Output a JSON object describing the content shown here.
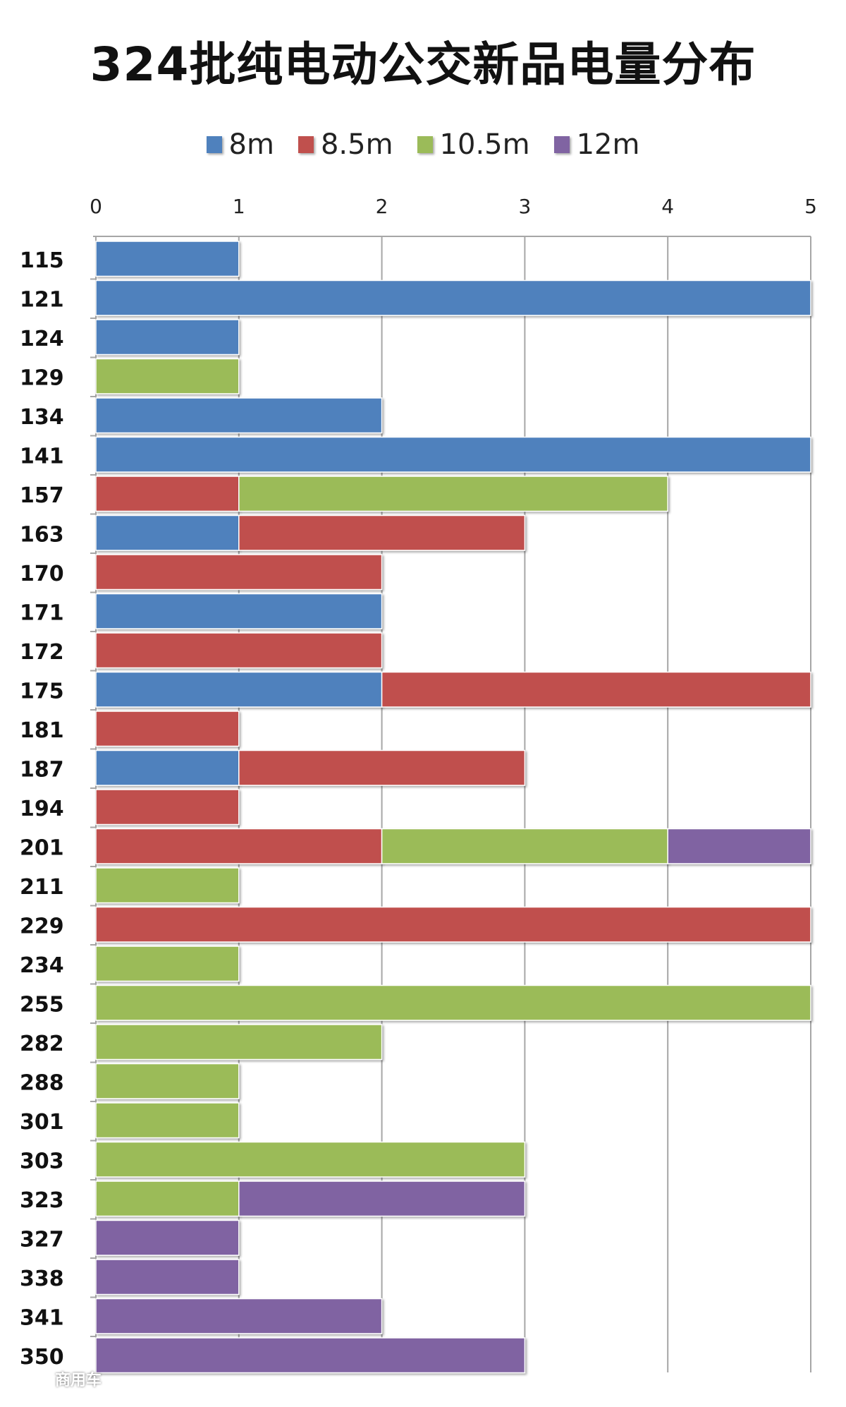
{
  "chart_data": {
    "type": "bar",
    "orientation": "horizontal",
    "stacked": true,
    "title": "324批纯电动公交新品电量分布",
    "legend_position": "top",
    "grid": true,
    "xlim": [
      0,
      5
    ],
    "x_ticks": [
      "0",
      "1",
      "2",
      "3",
      "4",
      "5"
    ],
    "categories": [
      "115",
      "121",
      "124",
      "129",
      "134",
      "141",
      "157",
      "163",
      "170",
      "171",
      "172",
      "175",
      "181",
      "187",
      "194",
      "201",
      "211",
      "229",
      "234",
      "255",
      "282",
      "288",
      "301",
      "303",
      "323",
      "327",
      "338",
      "341",
      "350"
    ],
    "series": [
      {
        "name": "8m",
        "color": "#4F81BD",
        "values": [
          1,
          5,
          1,
          0,
          2,
          5,
          0,
          1,
          0,
          2,
          0,
          2,
          0,
          1,
          0,
          0,
          0,
          0,
          0,
          0,
          0,
          0,
          0,
          0,
          0,
          0,
          0,
          0,
          0
        ]
      },
      {
        "name": "8.5m",
        "color": "#C0504D",
        "values": [
          0,
          0,
          0,
          0,
          0,
          0,
          1,
          2,
          2,
          0,
          2,
          3,
          1,
          2,
          1,
          2,
          0,
          5,
          0,
          0,
          0,
          0,
          0,
          0,
          0,
          0,
          0,
          0,
          0
        ]
      },
      {
        "name": "10.5m",
        "color": "#9BBB59",
        "values": [
          0,
          0,
          0,
          1,
          0,
          0,
          3,
          0,
          0,
          0,
          0,
          0,
          0,
          0,
          0,
          2,
          1,
          0,
          1,
          5,
          2,
          1,
          1,
          3,
          1,
          0,
          0,
          0,
          0
        ]
      },
      {
        "name": "12m",
        "color": "#8064A2",
        "values": [
          0,
          0,
          0,
          0,
          0,
          0,
          0,
          0,
          0,
          0,
          0,
          0,
          0,
          0,
          0,
          1,
          0,
          0,
          0,
          0,
          0,
          0,
          0,
          0,
          2,
          1,
          1,
          2,
          3
        ]
      }
    ]
  },
  "watermark": "商用车"
}
